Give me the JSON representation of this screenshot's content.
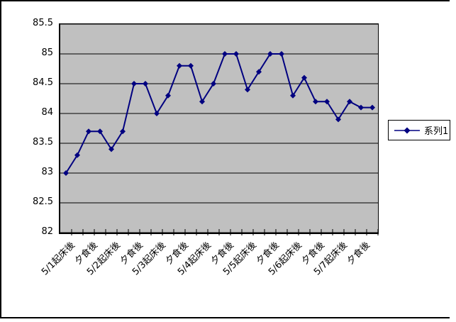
{
  "colors": {
    "series": "#000080",
    "grid": "#000000",
    "plot_bg": "#c0c0c0",
    "frame": "#000000",
    "page_bg": "#ffffff"
  },
  "legend": {
    "label": "系列1"
  },
  "chart_data": {
    "type": "line",
    "title": "",
    "xlabel": "",
    "ylabel": "",
    "grid": true,
    "legend_position": "right",
    "marker": "diamond",
    "plot_area_color": "#c0c0c0",
    "ylim": [
      82,
      85.5
    ],
    "y_ticks": [
      85.5,
      85,
      84.5,
      84,
      83.5,
      83,
      82.5,
      82
    ],
    "y_tick_labels": [
      "85.5",
      "85",
      "84.5",
      "84",
      "83.5",
      "83",
      "82.5",
      "82"
    ],
    "label_every": 2,
    "x_tick_labels": [
      "5/1起床後",
      "夕食後",
      "5/2起床後",
      "夕食後",
      "5/3起床後",
      "夕食後",
      "5/4起床後",
      "夕食後",
      "5/5起床後",
      "夕食後",
      "5/6起床後",
      "夕食後",
      "5/7起床後",
      "夕食後"
    ],
    "series": [
      {
        "name": "系列1",
        "values": [
          83.0,
          83.3,
          83.7,
          83.7,
          83.4,
          83.7,
          84.5,
          84.5,
          84.0,
          84.3,
          84.8,
          84.8,
          84.2,
          84.5,
          85.0,
          85.0,
          84.4,
          84.7,
          85.0,
          85.0,
          84.3,
          84.6,
          84.2,
          84.2,
          83.9,
          84.2,
          84.1,
          84.1
        ]
      }
    ]
  }
}
